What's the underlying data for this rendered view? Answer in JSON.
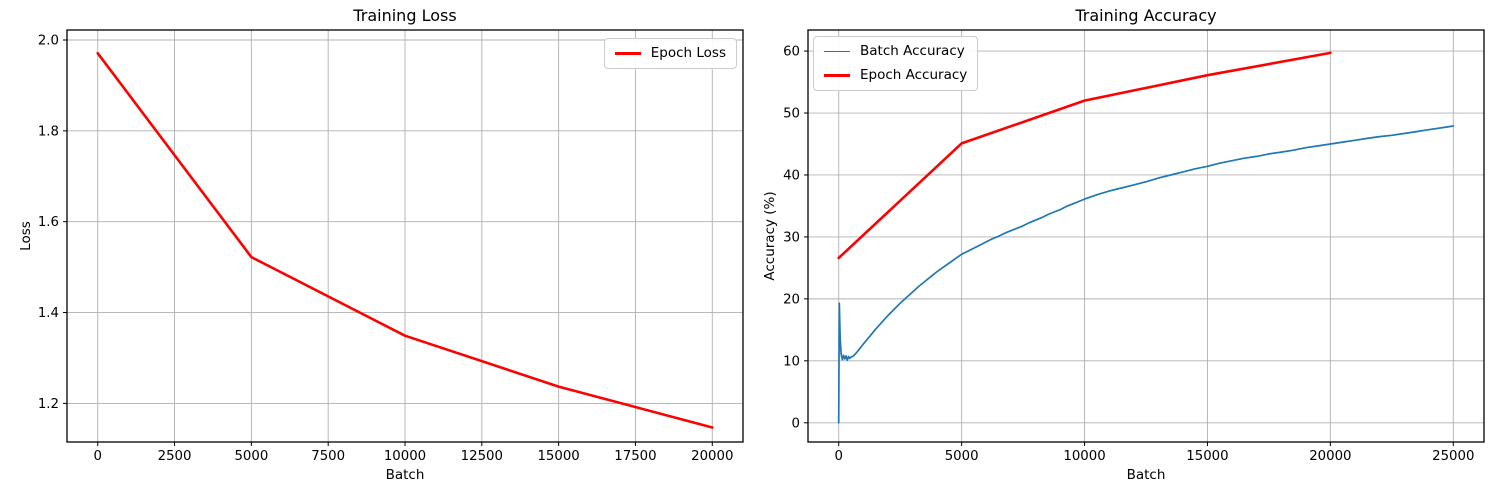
{
  "figure": {
    "background": "#ffffff",
    "grid_color": "#b0b0b0",
    "axes_color": "#000000"
  },
  "chart_data": [
    {
      "type": "line",
      "title": "Training Loss",
      "xlabel": "Batch",
      "ylabel": "Loss",
      "grid": true,
      "xlim": [
        -1000,
        21000
      ],
      "ylim": [
        1.115,
        2.022
      ],
      "xticks": [
        0,
        2500,
        5000,
        7500,
        10000,
        12500,
        15000,
        17500,
        20000
      ],
      "yticks": [
        1.2,
        1.4,
        1.6,
        1.8,
        2.0
      ],
      "ytick_decimals": 1,
      "legend_position": "top-right",
      "series": [
        {
          "name": "Epoch Loss",
          "color": "#ff0000",
          "line_width": 2.6,
          "points": [
            [
              0,
              1.971
            ],
            [
              5000,
              1.522
            ],
            [
              10000,
              1.349
            ],
            [
              15000,
              1.237
            ],
            [
              20000,
              1.147
            ]
          ]
        }
      ]
    },
    {
      "type": "line",
      "title": "Training Accuracy",
      "xlabel": "Batch",
      "ylabel": "Accuracy (%)",
      "grid": true,
      "xlim": [
        -1250,
        26250
      ],
      "ylim": [
        -3.1,
        63.4
      ],
      "xticks": [
        0,
        5000,
        10000,
        15000,
        20000,
        25000
      ],
      "yticks": [
        0,
        10,
        20,
        30,
        40,
        50,
        60
      ],
      "ytick_decimals": 0,
      "legend_position": "top-left",
      "series": [
        {
          "name": "Batch Accuracy",
          "color": "#1f77b4",
          "line_width": 1.7,
          "points": [
            [
              0,
              0
            ],
            [
              25,
              19.3
            ],
            [
              60,
              13.5
            ],
            [
              100,
              11.0
            ],
            [
              150,
              10.2
            ],
            [
              200,
              10.9
            ],
            [
              250,
              10.3
            ],
            [
              300,
              10.8
            ],
            [
              350,
              10.1
            ],
            [
              400,
              10.7
            ],
            [
              450,
              10.4
            ],
            [
              500,
              10.6
            ],
            [
              600,
              10.8
            ],
            [
              700,
              11.2
            ],
            [
              800,
              11.7
            ],
            [
              1000,
              12.7
            ],
            [
              1250,
              13.9
            ],
            [
              1500,
              15.1
            ],
            [
              1750,
              16.2
            ],
            [
              2000,
              17.3
            ],
            [
              2250,
              18.3
            ],
            [
              2500,
              19.3
            ],
            [
              2750,
              20.2
            ],
            [
              3000,
              21.1
            ],
            [
              3250,
              22.0
            ],
            [
              3500,
              22.8
            ],
            [
              3750,
              23.6
            ],
            [
              4000,
              24.4
            ],
            [
              4250,
              25.1
            ],
            [
              4500,
              25.8
            ],
            [
              4750,
              26.5
            ],
            [
              5000,
              27.2
            ],
            [
              5250,
              27.7
            ],
            [
              5500,
              28.2
            ],
            [
              5750,
              28.7
            ],
            [
              6000,
              29.2
            ],
            [
              6250,
              29.7
            ],
            [
              6500,
              30.1
            ],
            [
              6750,
              30.6
            ],
            [
              7000,
              31.0
            ],
            [
              7250,
              31.4
            ],
            [
              7500,
              31.8
            ],
            [
              7750,
              32.3
            ],
            [
              8000,
              32.7
            ],
            [
              8250,
              33.1
            ],
            [
              8500,
              33.6
            ],
            [
              8750,
              34.0
            ],
            [
              9000,
              34.4
            ],
            [
              9250,
              34.9
            ],
            [
              9500,
              35.3
            ],
            [
              9750,
              35.7
            ],
            [
              10000,
              36.1
            ],
            [
              10500,
              36.8
            ],
            [
              11000,
              37.4
            ],
            [
              11500,
              37.9
            ],
            [
              12000,
              38.4
            ],
            [
              12500,
              38.9
            ],
            [
              13000,
              39.5
            ],
            [
              13500,
              40.0
            ],
            [
              14000,
              40.5
            ],
            [
              14500,
              41.0
            ],
            [
              15000,
              41.4
            ],
            [
              15500,
              41.9
            ],
            [
              16000,
              42.3
            ],
            [
              16500,
              42.7
            ],
            [
              17000,
              43.0
            ],
            [
              17500,
              43.4
            ],
            [
              18000,
              43.7
            ],
            [
              18500,
              44.0
            ],
            [
              19000,
              44.4
            ],
            [
              19500,
              44.7
            ],
            [
              20000,
              45.0
            ],
            [
              20500,
              45.3
            ],
            [
              21000,
              45.6
            ],
            [
              21500,
              45.9
            ],
            [
              22000,
              46.2
            ],
            [
              22500,
              46.4
            ],
            [
              23000,
              46.7
            ],
            [
              23500,
              47.0
            ],
            [
              24000,
              47.3
            ],
            [
              24500,
              47.6
            ],
            [
              25000,
              47.9
            ]
          ]
        },
        {
          "name": "Epoch Accuracy",
          "color": "#ff0000",
          "line_width": 2.6,
          "points": [
            [
              0,
              26.6
            ],
            [
              5000,
              45.1
            ],
            [
              10000,
              52.0
            ],
            [
              15000,
              56.1
            ],
            [
              20000,
              59.7
            ]
          ]
        }
      ]
    }
  ]
}
